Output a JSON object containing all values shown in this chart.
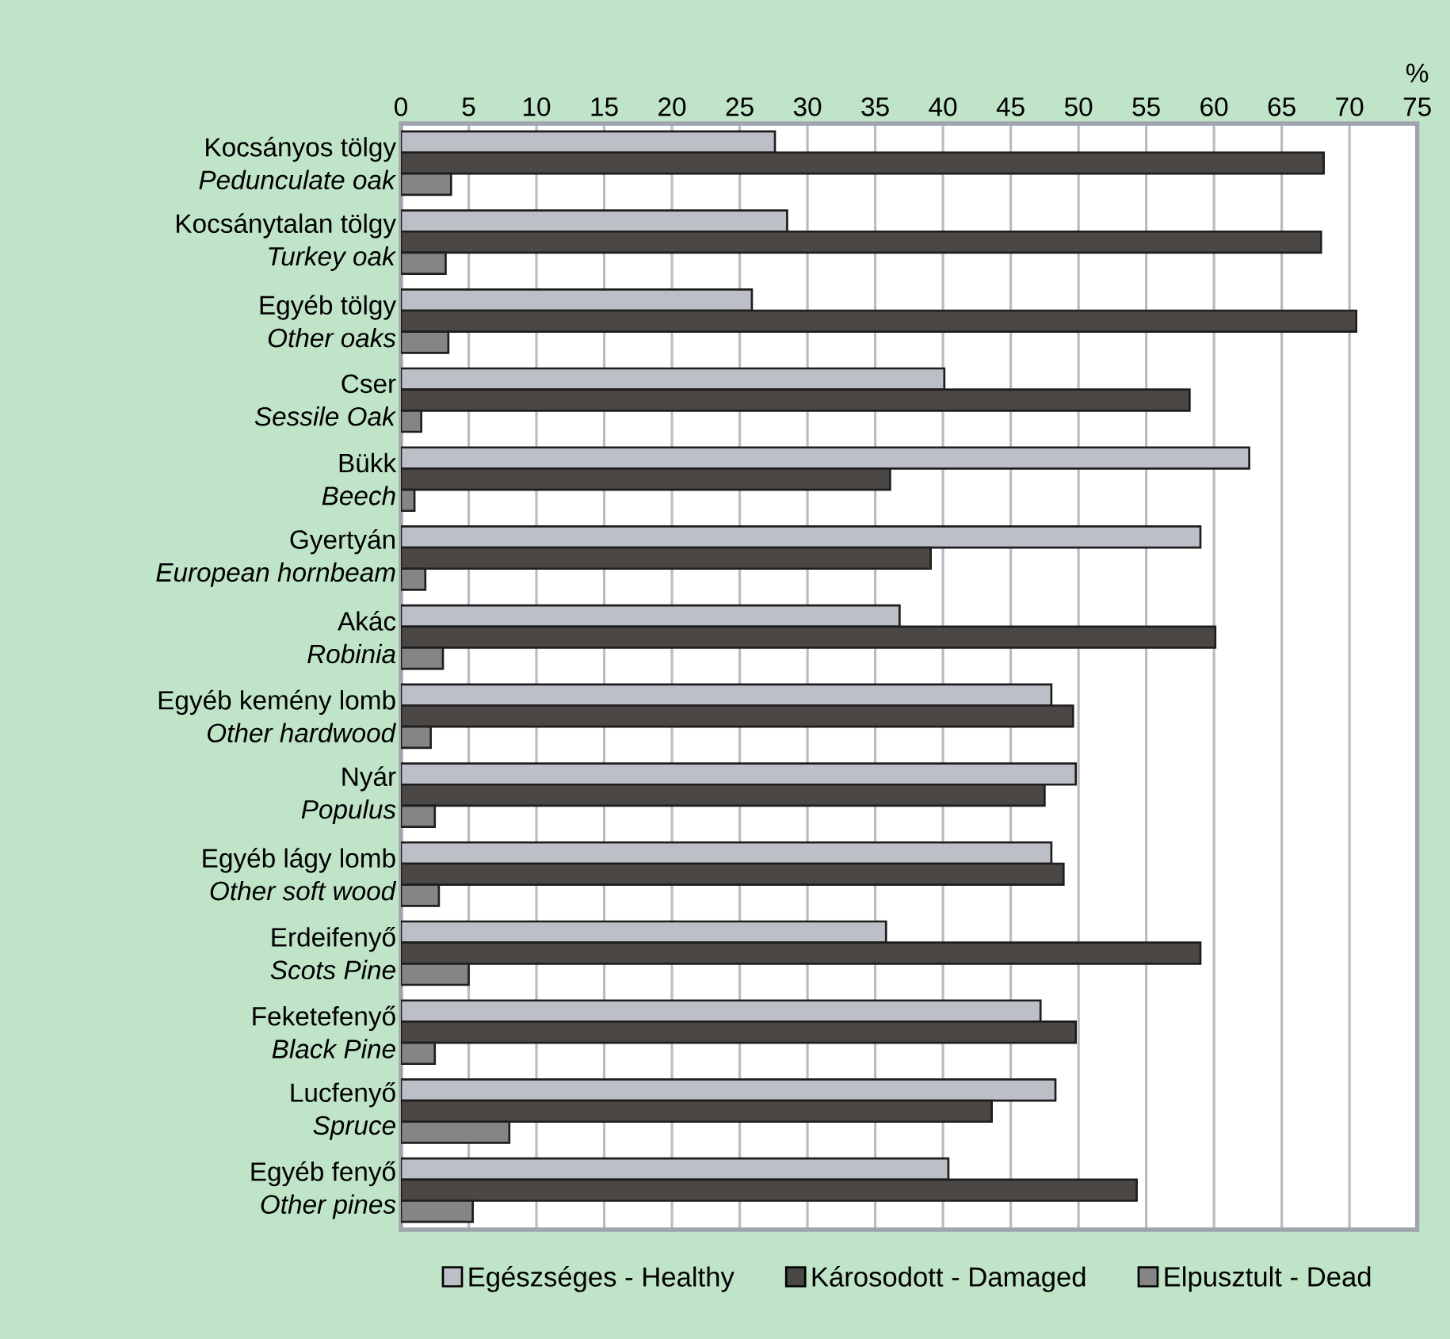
{
  "chart_data": {
    "type": "bar",
    "orientation": "horizontal",
    "xlabel": "%",
    "categories": [
      "Kocsányos tölgy\n*Pedunculate oak*",
      "Kocsánytalan tölgy\n*Turkey oak*",
      "Egyéb tölgy\n*Other oaks*",
      "Cser\n*Sessile Oak*",
      "Bükk\n*Beech*",
      "Gyertyán\n*European hornbeam*",
      "Akác\n*Robinia*",
      "Egyéb kemény lomb\n*Other hardwood*",
      "Nyár\n*Populus*",
      "Egyéb lágy lomb\n*Other soft wood*",
      "Erdeifenyő\n*Scots Pine*",
      "Feketefenyő\n*Black Pine*",
      "Lucfenyő\n*Spruce*",
      "Egyéb fenyő\n*Other pines*"
    ],
    "series": [
      {
        "name": "Egészséges - Healthy",
        "color": "#bcbfc6",
        "values": [
          27.6,
          28.5,
          25.9,
          40.1,
          62.6,
          59.0,
          36.8,
          48.0,
          49.8,
          48.0,
          35.8,
          47.2,
          48.3,
          40.4
        ]
      },
      {
        "name": "Károsodott - Damaged",
        "color": "#4a4745",
        "values": [
          68.1,
          67.9,
          70.5,
          58.2,
          36.1,
          39.1,
          60.1,
          49.6,
          47.5,
          48.9,
          59.0,
          49.8,
          43.6,
          54.3
        ]
      },
      {
        "name": "Elpusztult - Dead",
        "color": "#858585",
        "values": [
          3.7,
          3.3,
          3.5,
          1.5,
          1.0,
          1.8,
          3.1,
          2.2,
          2.5,
          2.8,
          5.0,
          2.5,
          8.0,
          5.3
        ]
      }
    ],
    "xlim": [
      0,
      75
    ],
    "xticks": [
      0,
      5,
      10,
      15,
      20,
      25,
      30,
      35,
      40,
      45,
      50,
      55,
      60,
      65,
      70,
      75
    ],
    "grid": "x",
    "legend": "bottom"
  }
}
